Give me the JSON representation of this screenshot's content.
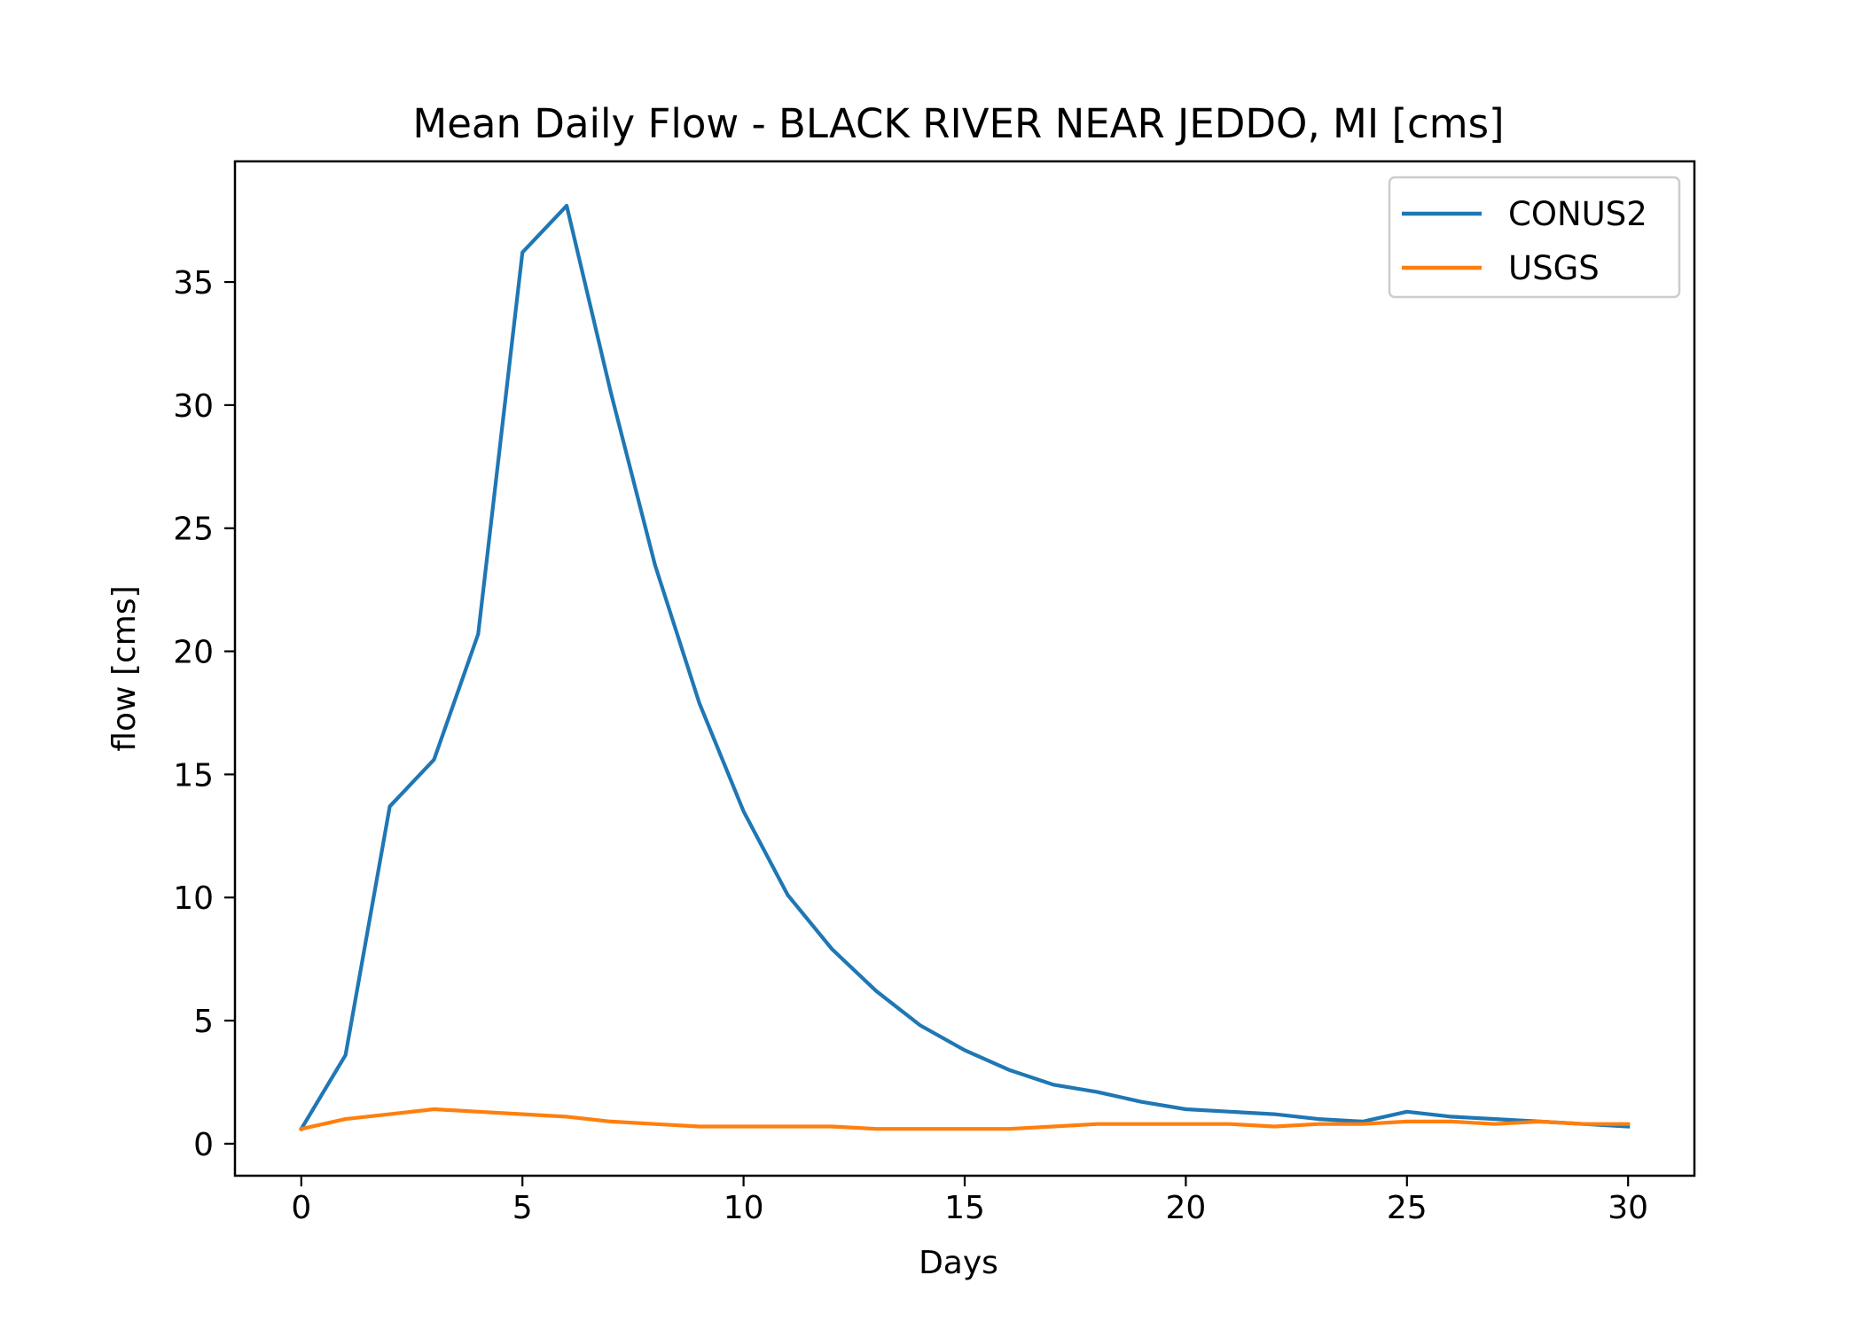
{
  "chart_data": {
    "type": "line",
    "title": "Mean Daily Flow - BLACK RIVER NEAR JEDDO, MI [cms]",
    "xlabel": "Days",
    "ylabel": "flow [cms]",
    "xlim": [
      -1.5,
      31.5
    ],
    "ylim": [
      -1.3,
      39.9
    ],
    "xticks": [
      0,
      5,
      10,
      15,
      20,
      25,
      30
    ],
    "yticks": [
      0,
      5,
      10,
      15,
      20,
      25,
      30,
      35
    ],
    "legend_position": "top-right",
    "x": [
      0,
      1,
      2,
      3,
      4,
      5,
      6,
      7,
      8,
      9,
      10,
      11,
      12,
      13,
      14,
      15,
      16,
      17,
      18,
      19,
      20,
      21,
      22,
      23,
      24,
      25,
      26,
      27,
      28,
      29,
      30
    ],
    "series": [
      {
        "name": "CONUS2",
        "color": "#1f77b4",
        "values": [
          0.6,
          3.6,
          13.7,
          15.6,
          20.7,
          36.2,
          38.1,
          30.5,
          23.5,
          17.9,
          13.5,
          10.1,
          7.9,
          6.2,
          4.8,
          3.8,
          3.0,
          2.4,
          2.1,
          1.7,
          1.4,
          1.3,
          1.2,
          1.0,
          0.9,
          1.3,
          1.1,
          1.0,
          0.9,
          0.8,
          0.7
        ]
      },
      {
        "name": "USGS",
        "color": "#ff7f0e",
        "values": [
          0.6,
          1.0,
          1.2,
          1.4,
          1.3,
          1.2,
          1.1,
          0.9,
          0.8,
          0.7,
          0.7,
          0.7,
          0.7,
          0.6,
          0.6,
          0.6,
          0.6,
          0.7,
          0.8,
          0.8,
          0.8,
          0.8,
          0.7,
          0.8,
          0.8,
          0.9,
          0.9,
          0.8,
          0.9,
          0.8,
          0.8
        ]
      }
    ]
  }
}
